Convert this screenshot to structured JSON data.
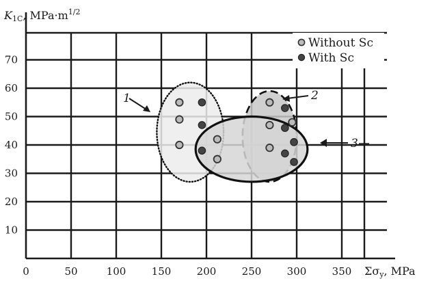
{
  "chart_data": {
    "type": "scatter",
    "xlabel": "Σσ",
    "xlabel_sub": "y",
    "xlabel_unit": ", MPa",
    "ylabel": "K",
    "ylabel_sub": "1C",
    "ylabel_unit": ", MPa·m",
    "ylabel_exp": "1/2",
    "xlim": [
      0,
      375
    ],
    "ylim": [
      0,
      80
    ],
    "x_ticks": [
      0,
      50,
      100,
      150,
      200,
      250,
      300,
      350
    ],
    "x_tick_labels": [
      "0",
      "50",
      "100",
      "150",
      "200",
      "250",
      "300",
      "350"
    ],
    "y_ticks": [
      10,
      20,
      30,
      40,
      50,
      60,
      70
    ],
    "y_tick_labels": [
      "10",
      "20",
      "30",
      "40",
      "50",
      "60",
      "70"
    ],
    "grid": true,
    "legend_position": "top-right",
    "series": [
      {
        "name": "Without Sc",
        "marker": "open-circle",
        "color": "#bbbbbb",
        "points": [
          {
            "x": 170,
            "y": 55
          },
          {
            "x": 170,
            "y": 49
          },
          {
            "x": 170,
            "y": 40
          },
          {
            "x": 212,
            "y": 42
          },
          {
            "x": 212,
            "y": 35
          },
          {
            "x": 270,
            "y": 55
          },
          {
            "x": 270,
            "y": 47
          },
          {
            "x": 270,
            "y": 39
          },
          {
            "x": 295,
            "y": 48
          }
        ]
      },
      {
        "name": "With Sc",
        "marker": "filled-circle",
        "color": "#444444",
        "points": [
          {
            "x": 195,
            "y": 55
          },
          {
            "x": 195,
            "y": 47
          },
          {
            "x": 195,
            "y": 38
          },
          {
            "x": 287,
            "y": 53
          },
          {
            "x": 287,
            "y": 46
          },
          {
            "x": 287,
            "y": 37
          },
          {
            "x": 297,
            "y": 41
          },
          {
            "x": 297,
            "y": 34
          }
        ]
      }
    ],
    "regions": [
      {
        "label": "1",
        "cx": 182,
        "cy": 44.5,
        "rx": 37,
        "ry": 17.5,
        "line": "dotted",
        "fill": "#ececec"
      },
      {
        "label": "2",
        "cx": 270,
        "cy": 43,
        "rx": 30,
        "ry": 16,
        "line": "dashed",
        "fill": "#c8c8c8"
      },
      {
        "label": "3",
        "cx": 250,
        "cy": 38.5,
        "rx": 62,
        "ry": 11.5,
        "line": "solid",
        "fill": "#d6d6d6"
      }
    ]
  }
}
